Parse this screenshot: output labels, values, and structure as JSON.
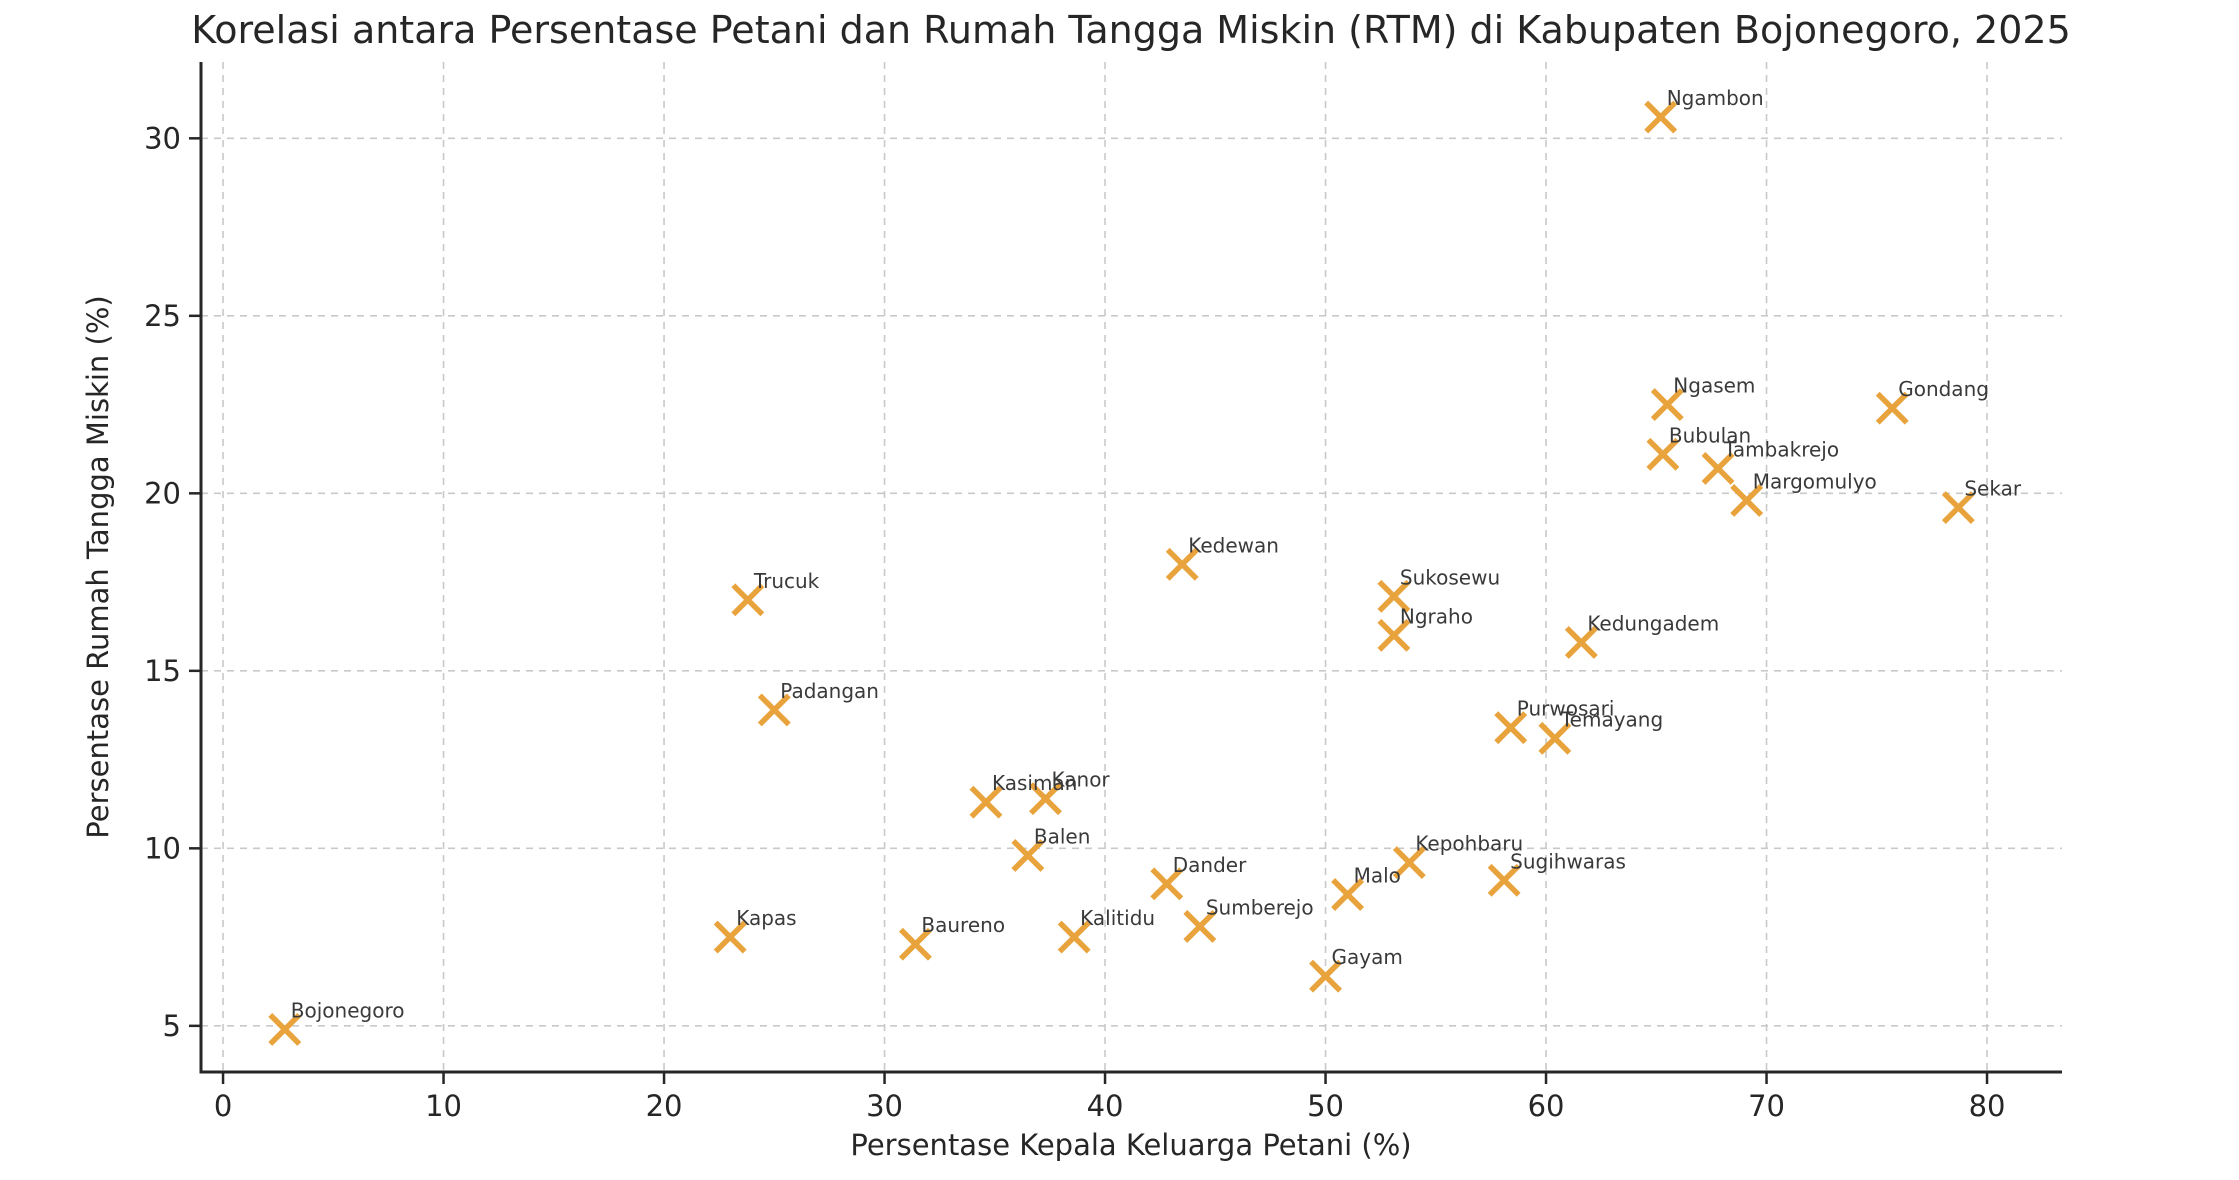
{
  "chart_data": {
    "type": "scatter",
    "title": "Korelasi antara Persentase Petani dan Rumah Tangga Miskin (RTM) di Kabupaten Bojonegoro, 2025",
    "xlabel": "Persentase Kepala Keluarga Petani (%)",
    "ylabel": "Persentase Rumah Tangga Miskin (%)",
    "xlim": [
      -1,
      83.4
    ],
    "ylim": [
      3.7,
      32.15
    ],
    "x_ticks": [
      0,
      10,
      20,
      30,
      40,
      50,
      60,
      70,
      80
    ],
    "y_ticks": [
      5,
      10,
      15,
      20,
      25,
      30
    ],
    "grid": "dashed",
    "legend": "none",
    "marker": {
      "shape": "x",
      "color": "#E8A33C"
    },
    "points": [
      {
        "name": "Bojonegoro",
        "x": 2.8,
        "y": 4.9
      },
      {
        "name": "Kapas",
        "x": 23.0,
        "y": 7.5
      },
      {
        "name": "Trucuk",
        "x": 23.8,
        "y": 17.0
      },
      {
        "name": "Padangan",
        "x": 25.0,
        "y": 13.9
      },
      {
        "name": "Baureno",
        "x": 31.4,
        "y": 7.3
      },
      {
        "name": "Kasiman",
        "x": 34.6,
        "y": 11.3
      },
      {
        "name": "Balen",
        "x": 36.5,
        "y": 9.8
      },
      {
        "name": "Kanor",
        "x": 37.3,
        "y": 11.4
      },
      {
        "name": "Kalitidu",
        "x": 38.6,
        "y": 7.5
      },
      {
        "name": "Dander",
        "x": 42.8,
        "y": 9.0
      },
      {
        "name": "Kedewan",
        "x": 43.5,
        "y": 18.0
      },
      {
        "name": "Sumberejo",
        "x": 44.3,
        "y": 7.8
      },
      {
        "name": "Gayam",
        "x": 50.0,
        "y": 6.4
      },
      {
        "name": "Malo",
        "x": 51.0,
        "y": 8.7
      },
      {
        "name": "Sukosewu",
        "x": 53.1,
        "y": 17.1
      },
      {
        "name": "Ngraho",
        "x": 53.1,
        "y": 16.0
      },
      {
        "name": "Kepohbaru",
        "x": 53.8,
        "y": 9.6
      },
      {
        "name": "Sugihwaras",
        "x": 58.1,
        "y": 9.1
      },
      {
        "name": "Purwosari",
        "x": 58.4,
        "y": 13.4
      },
      {
        "name": "Temayang",
        "x": 60.4,
        "y": 13.1
      },
      {
        "name": "Kedungadem",
        "x": 61.6,
        "y": 15.8
      },
      {
        "name": "Ngambon",
        "x": 65.2,
        "y": 30.6
      },
      {
        "name": "Bubulan",
        "x": 65.3,
        "y": 21.1
      },
      {
        "name": "Ngasem",
        "x": 65.5,
        "y": 22.5
      },
      {
        "name": "Tambakrejo",
        "x": 67.8,
        "y": 20.7
      },
      {
        "name": "Margomulyo",
        "x": 69.1,
        "y": 19.8
      },
      {
        "name": "Gondang",
        "x": 75.7,
        "y": 22.4
      },
      {
        "name": "Sekar",
        "x": 78.7,
        "y": 19.6
      }
    ],
    "colors": {
      "marker": "#E8A33C",
      "grid": "#c9c9c9",
      "spine": "#262626",
      "text": "#262626",
      "point_label": "#3a3a3a"
    }
  }
}
